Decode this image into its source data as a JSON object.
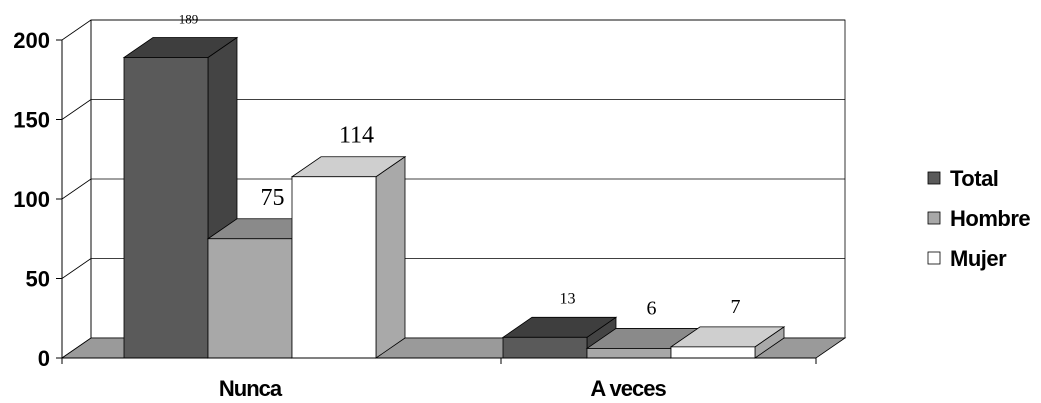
{
  "chart_data": {
    "type": "bar",
    "categories": [
      "Nunca",
      "A veces"
    ],
    "series": [
      {
        "name": "Total",
        "values": [
          189,
          13
        ]
      },
      {
        "name": "Hombre",
        "values": [
          75,
          6
        ]
      },
      {
        "name": "Mujer",
        "values": [
          114,
          7
        ]
      }
    ],
    "data_labels": [
      [
        "189",
        "13"
      ],
      [
        "75",
        "6"
      ],
      [
        "114",
        "7"
      ]
    ],
    "ylim": [
      0,
      200
    ],
    "yticks": [
      "0",
      "50",
      "100",
      "150",
      "200"
    ],
    "grid": true,
    "three_d": true,
    "legend_position": "right",
    "colors": {
      "Total": {
        "front": "#5a5a5a",
        "top": "#3e3e3e",
        "side": "#444444"
      },
      "Hombre": {
        "front": "#a8a8a8",
        "top": "#8a8a8a",
        "side": "#959595"
      },
      "Mujer": {
        "front": "#ffffff",
        "top": "#cfcfcf",
        "side": "#a9a9a9"
      },
      "floor": "#9a9a9a"
    }
  }
}
